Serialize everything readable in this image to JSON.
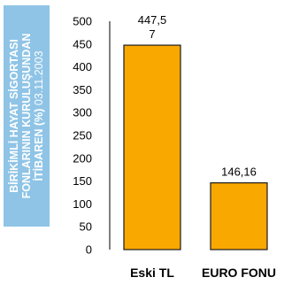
{
  "banner": {
    "line1": "BİRİKİMLİ HAYAT SİGORTASI",
    "line2": "FONLARININ KURULUŞUNDAN",
    "line3_bold": "İTİBAREN (%)",
    "line3_date": " 03.11.2003"
  },
  "colors": {
    "bar": "#f9a800",
    "bar_stroke": "#1a1a1a",
    "banner": "#8fc4e6",
    "axis": "#000000"
  },
  "chart_data": {
    "type": "bar",
    "categories": [
      "Eski TL",
      "EURO FONU"
    ],
    "values": [
      447.57,
      146.16
    ],
    "data_labels": [
      [
        "447,5",
        "7"
      ],
      [
        "146,16"
      ]
    ],
    "y_ticks": [
      "0",
      "50",
      "100",
      "150",
      "200",
      "250",
      "300",
      "350",
      "400",
      "450",
      "500"
    ],
    "ylim": [
      0,
      500
    ],
    "title": "",
    "xlabel": "",
    "ylabel": "BİRİKİMLİ HAYAT SİGORTASI FONLARININ KURULUŞUNDAN İTİBAREN (%) 03.11.2003",
    "grid": false
  }
}
